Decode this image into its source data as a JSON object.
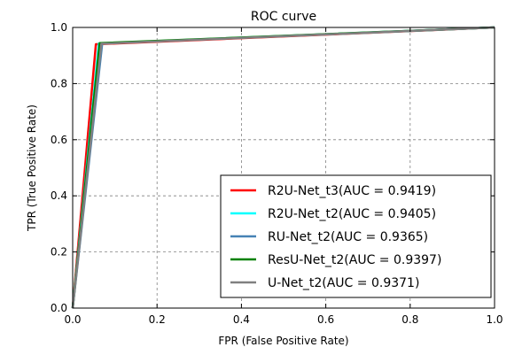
{
  "chart_data": {
    "type": "line",
    "title": "ROC curve",
    "xlabel": "FPR (False Positive Rate)",
    "ylabel": "TPR (True Positive Rate)",
    "xlim": [
      0.0,
      1.0
    ],
    "ylim": [
      0.0,
      1.0
    ],
    "xticks": [
      "0.0",
      "0.2",
      "0.4",
      "0.6",
      "0.8",
      "1.0"
    ],
    "yticks": [
      "0.0",
      "0.2",
      "0.4",
      "0.6",
      "0.8",
      "1.0"
    ],
    "grid": true,
    "legend_position": "lower-right",
    "series": [
      {
        "name": "R2U-Net_t3(AUC = 0.9419)",
        "color": "#ff0000",
        "x": [
          0.0,
          0.055,
          1.0
        ],
        "y": [
          0.0,
          0.94,
          1.0
        ]
      },
      {
        "name": "R2U-Net_t2(AUC = 0.9405)",
        "color": "#00ffff",
        "x": [
          0.0,
          0.062,
          1.0
        ],
        "y": [
          0.0,
          0.943,
          1.0
        ]
      },
      {
        "name": "RU-Net_t2(AUC = 0.9365)",
        "color": "#4682b4",
        "x": [
          0.0,
          0.07,
          1.0
        ],
        "y": [
          0.0,
          0.943,
          1.0
        ]
      },
      {
        "name": "ResU-Net_t2(AUC = 0.9397)",
        "color": "#008000",
        "x": [
          0.0,
          0.064,
          1.0
        ],
        "y": [
          0.0,
          0.944,
          1.0
        ]
      },
      {
        "name": "U-Net_t2(AUC = 0.9371)",
        "color": "#808080",
        "x": [
          0.0,
          0.068,
          1.0
        ],
        "y": [
          0.0,
          0.942,
          1.0
        ]
      }
    ]
  }
}
